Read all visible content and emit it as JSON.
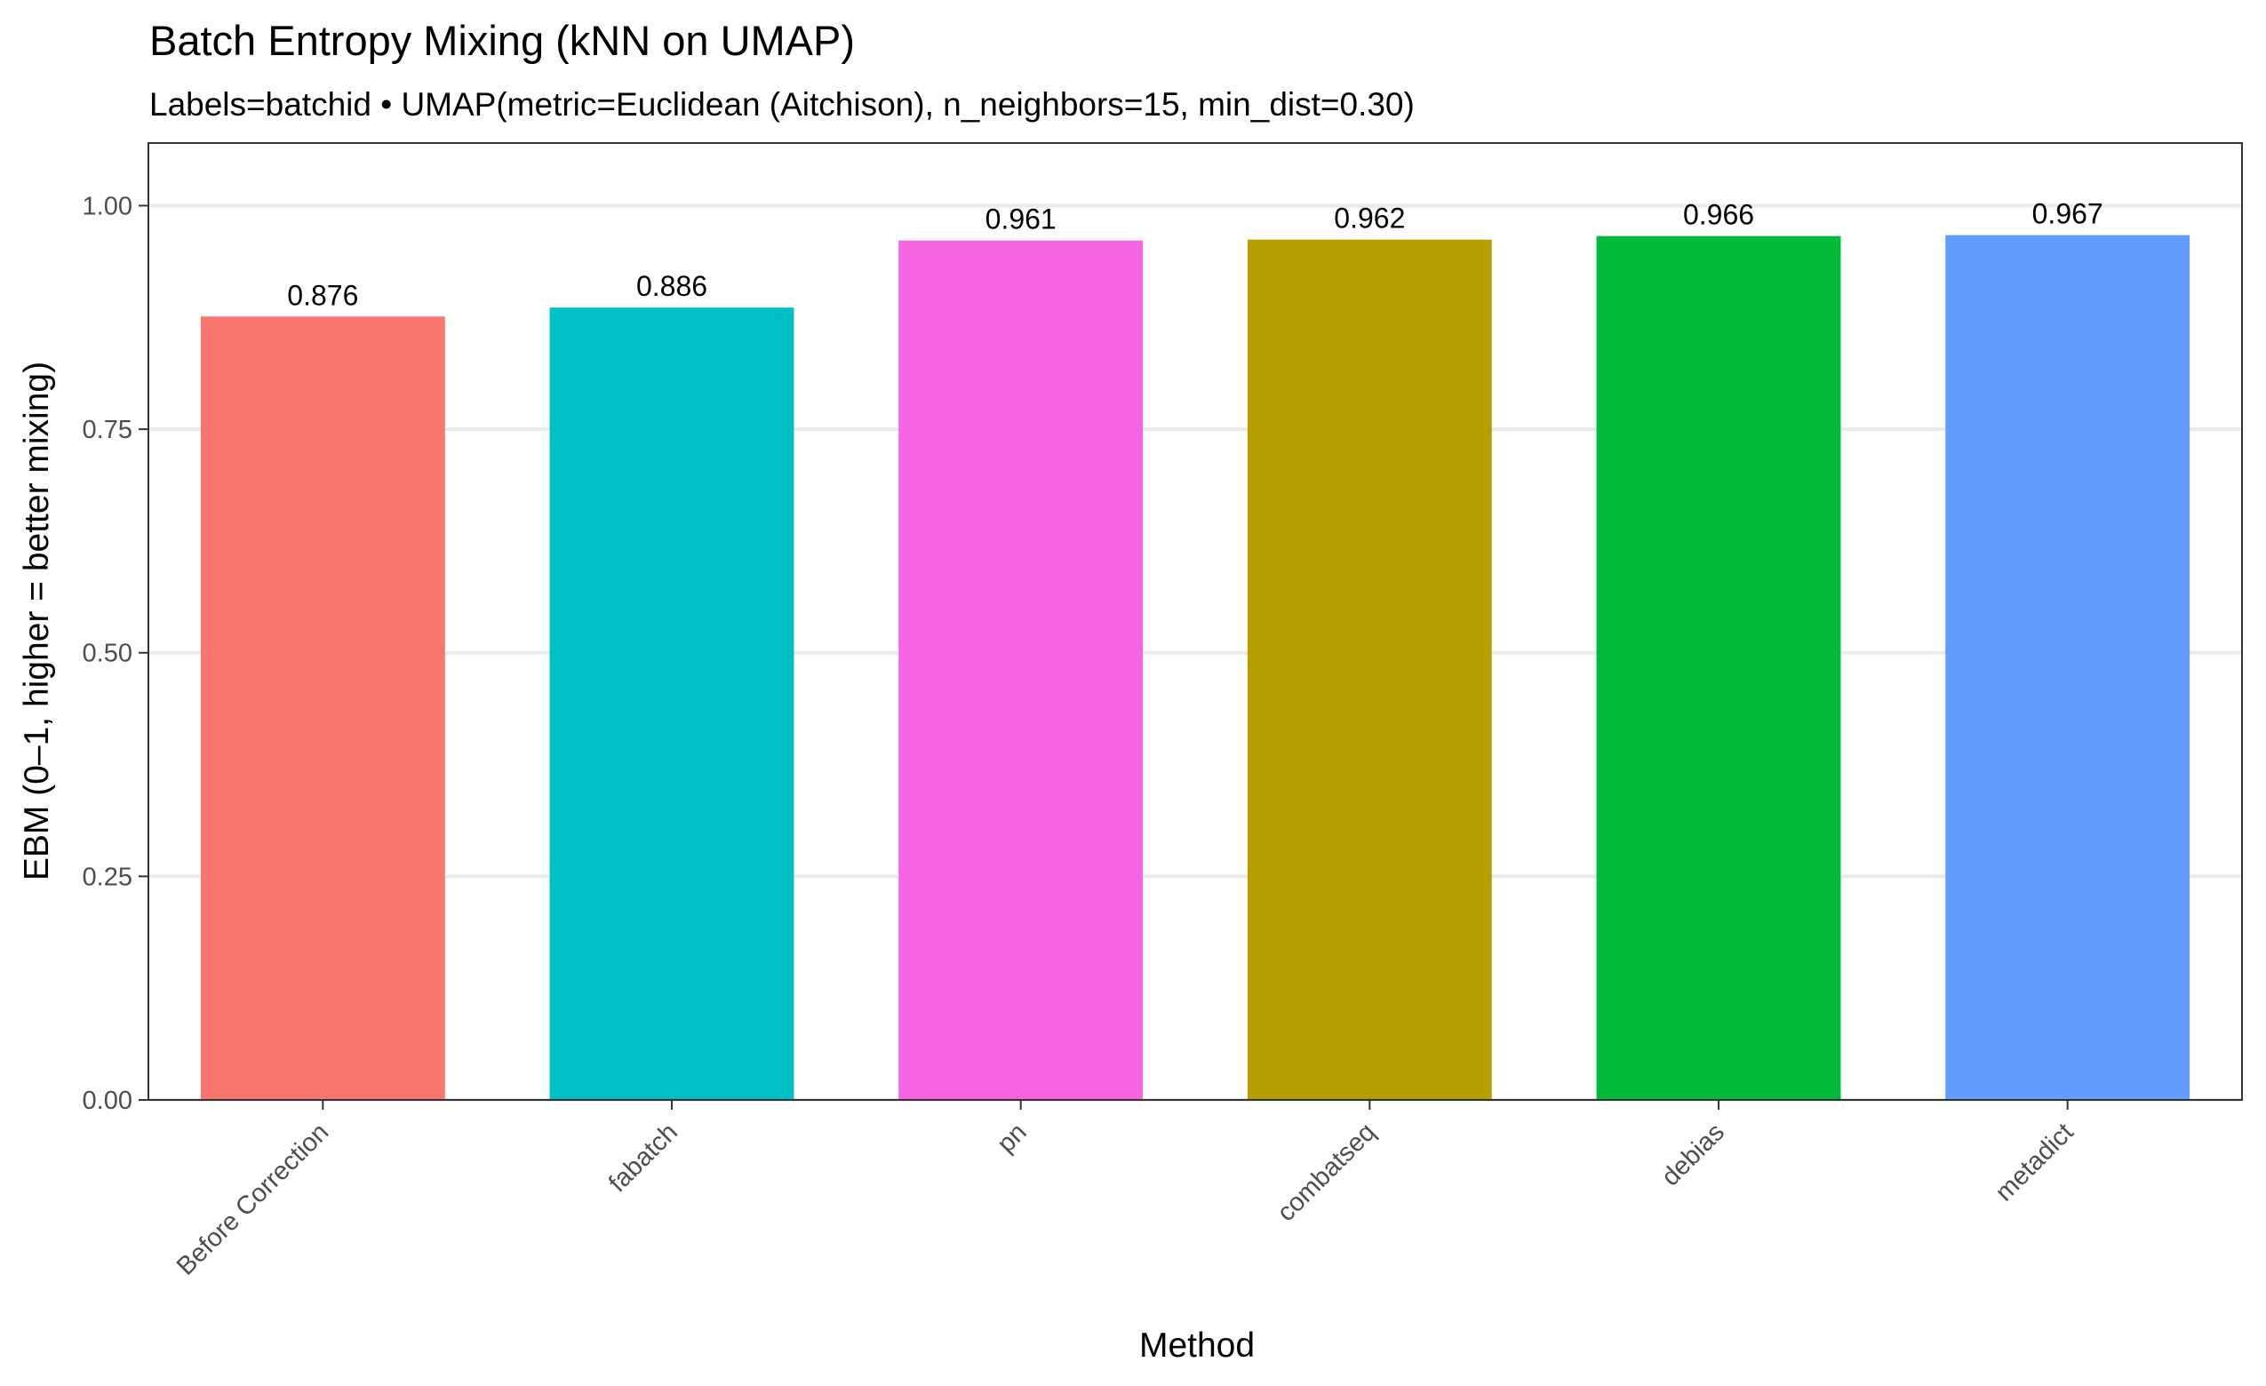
{
  "chart_data": {
    "type": "bar",
    "title": "Batch Entropy Mixing (kNN on UMAP)",
    "subtitle": "Labels=batchid • UMAP(metric=Euclidean (Aitchison), n_neighbors=15, min_dist=0.30)",
    "xlabel": "Method",
    "ylabel": "EBM (0–1, higher = better mixing)",
    "ylim": [
      0,
      1.07
    ],
    "y_ticks": [
      0.0,
      0.25,
      0.5,
      0.75,
      1.0
    ],
    "y_tick_labels": [
      "0.00",
      "0.25",
      "0.50",
      "0.75",
      "1.00"
    ],
    "grid": true,
    "legend": "none",
    "categories": [
      "Before Correction",
      "fabatch",
      "pn",
      "combatseq",
      "debias",
      "metadict"
    ],
    "values": [
      0.876,
      0.886,
      0.961,
      0.962,
      0.966,
      0.967
    ],
    "value_labels": [
      "0.876",
      "0.886",
      "0.961",
      "0.962",
      "0.966",
      "0.967"
    ],
    "colors": [
      "#F8766D",
      "#00BFC4",
      "#F564E3",
      "#B79F00",
      "#00BA38",
      "#619CFF"
    ]
  }
}
